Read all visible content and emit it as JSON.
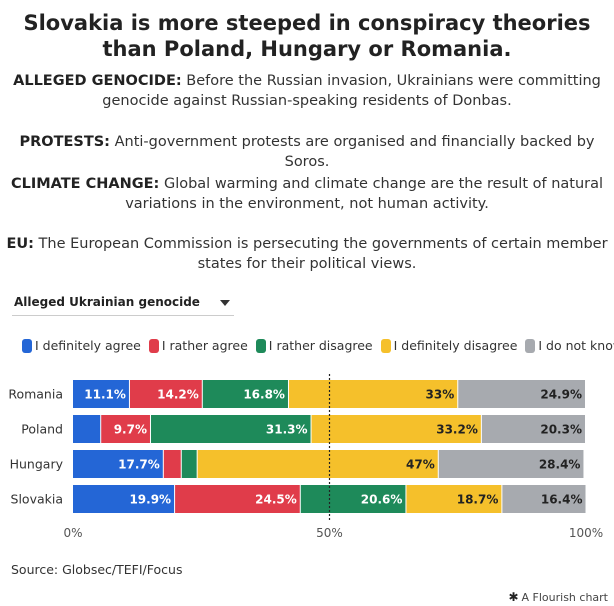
{
  "title": "Slovakia is more steeped in conspiracy theories than Poland, Hungary or Romania.",
  "notes": [
    {
      "label": "ALLEGED GENOCIDE:",
      "text": "Before the Russian invasion, Ukrainians were committing genocide against Russian-speaking residents of Donbas."
    },
    {
      "label": "PROTESTS:",
      "text": "Anti-government protests are organised and financially backed by Soros."
    },
    {
      "label": "CLIMATE CHANGE:",
      "text": "Global warming and climate change are the result of natural variations in the environment, not human activity."
    },
    {
      "label": "EU:",
      "text": "The European Commission is persecuting the governments of certain member states for their political views."
    }
  ],
  "dropdown": {
    "selected": "Alleged Ukrainian genocide",
    "icon": "chevron-down-icon"
  },
  "source": "Source: Globsec/TEFI/Focus",
  "credit": {
    "text": "A Flourish chart",
    "icon": "flourish-logo-icon"
  },
  "chart_data": {
    "type": "bar",
    "orientation": "horizontal",
    "stacked": true,
    "categories": [
      "Romania",
      "Poland",
      "Hungary",
      "Slovakia"
    ],
    "series": [
      {
        "name": "I definitely agree",
        "color": "#2466d6",
        "values": [
          11.1,
          5.5,
          17.7,
          19.9
        ],
        "labels": [
          "11.1%",
          "",
          "17.7%",
          "19.9%"
        ]
      },
      {
        "name": "I rather agree",
        "color": "#e03c4a",
        "values": [
          14.2,
          9.7,
          3.5,
          24.5
        ],
        "labels": [
          "14.2%",
          "9.7%",
          "",
          "24.5%"
        ]
      },
      {
        "name": "I rather disagree",
        "color": "#1e8a5a",
        "values": [
          16.8,
          31.3,
          3.1,
          20.6
        ],
        "labels": [
          "16.8%",
          "31.3%",
          "",
          "20.6%"
        ]
      },
      {
        "name": "I definitely disagree",
        "color": "#f5c02b",
        "values": [
          33,
          33.2,
          47,
          18.7
        ],
        "labels": [
          "33%",
          "33.2%",
          "47%",
          "18.7%"
        ]
      },
      {
        "name": "I do not know",
        "color": "#a7aaaf",
        "values": [
          24.9,
          20.3,
          28.4,
          16.4
        ],
        "labels": [
          "24.9%",
          "20.3%",
          "28.4%",
          "16.4%"
        ]
      }
    ],
    "xlim": [
      0,
      100
    ],
    "x_ticks": [
      "0%",
      "50%",
      "100%"
    ],
    "reference_line": 50,
    "legend": "top-left",
    "grid": false
  }
}
